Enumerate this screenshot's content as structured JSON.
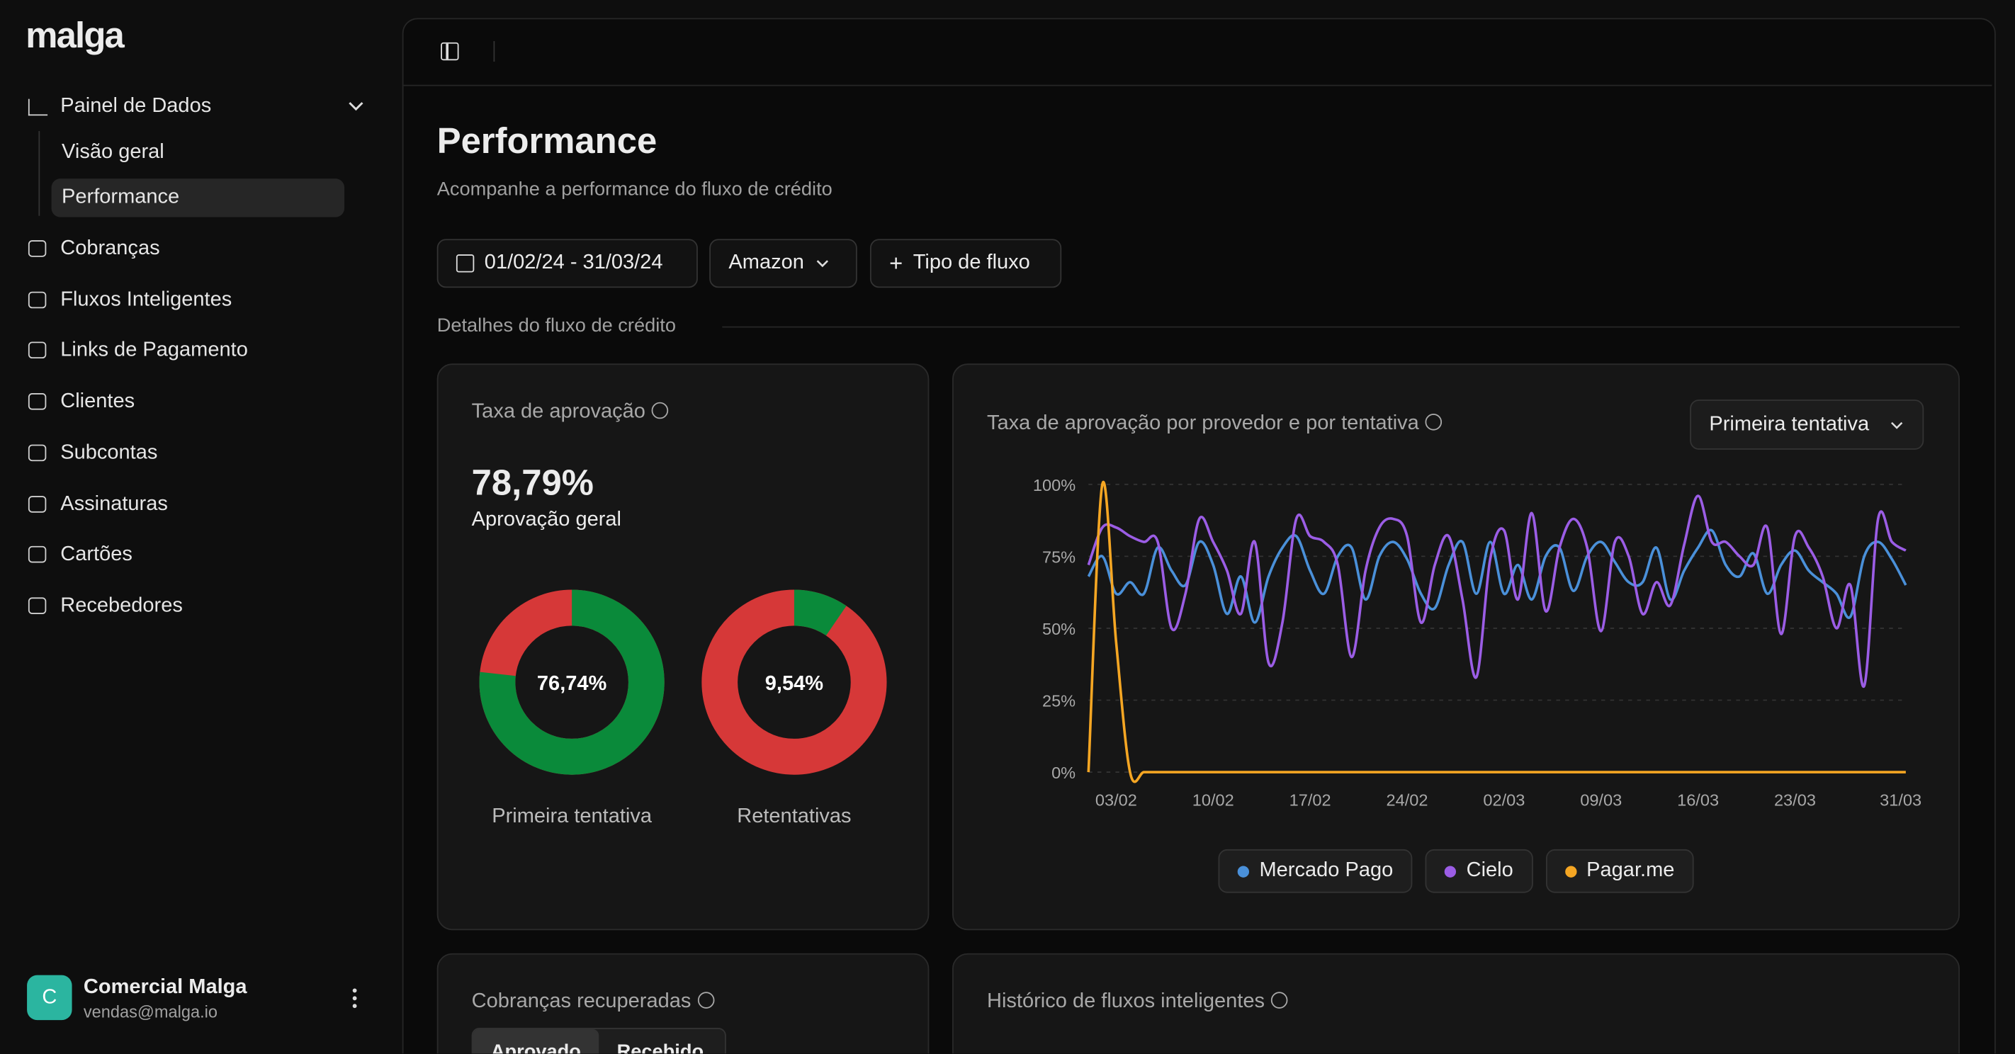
{
  "sidebar": {
    "logo": "malga",
    "section": "Painel de Dados",
    "subnav": [
      "Visão geral",
      "Performance"
    ],
    "nav": [
      "Cobranças",
      "Fluxos Inteligentes",
      "Links de Pagamento",
      "Clientes",
      "Subcontas",
      "Assinaturas",
      "Cartões",
      "Recebedores"
    ],
    "user": {
      "initial": "C",
      "name": "Comercial Malga",
      "email": "vendas@malga.io"
    }
  },
  "page": {
    "title": "Performance",
    "subtitle": "Acompanhe a performance do fluxo de crédito",
    "filters": {
      "date_range": "01/02/24 - 31/03/24",
      "merchant": "Amazon",
      "add_filter": "Tipo de fluxo"
    },
    "section_label": "Detalhes do fluxo de crédito"
  },
  "approval_card": {
    "title": "Taxa de aprovação",
    "value": "78,79%",
    "caption": "Aprovação geral",
    "donuts": [
      {
        "name": "Primeira tentativa",
        "value": 76.74,
        "value_label": "76,74%"
      },
      {
        "name": "Retentativas",
        "value": 9.54,
        "value_label": "9,54%"
      }
    ]
  },
  "chart_card": {
    "dropdown": "Primeira tentativa"
  },
  "chart_data": {
    "type": "line",
    "title": "Taxa de aprovação por provedor e por tentativa",
    "categories": [
      null,
      null,
      "03/02",
      null,
      null,
      null,
      null,
      null,
      null,
      "10/02",
      null,
      null,
      null,
      null,
      null,
      null,
      "17/02",
      null,
      null,
      null,
      null,
      null,
      null,
      "24/02",
      null,
      null,
      null,
      null,
      null,
      null,
      "02/03",
      null,
      null,
      null,
      null,
      null,
      null,
      "09/03",
      null,
      null,
      null,
      null,
      null,
      null,
      "16/03",
      null,
      null,
      null,
      null,
      null,
      null,
      "23/03",
      null,
      null,
      null,
      null,
      null,
      null,
      null,
      "31/03"
    ],
    "ylim": [
      0,
      100
    ],
    "yticks": [
      {
        "value": 0,
        "label": "0%"
      },
      {
        "value": 25,
        "label": "25%"
      },
      {
        "value": 50,
        "label": "50%"
      },
      {
        "value": 75,
        "label": "75%"
      },
      {
        "value": 100,
        "label": "100%"
      }
    ],
    "grid": true,
    "series": [
      {
        "name": "Mercado Pago",
        "color": "#4a90d9",
        "values": [
          68,
          75,
          62,
          66,
          62,
          78,
          70,
          65,
          80,
          72,
          55,
          68,
          52,
          68,
          78,
          82,
          70,
          62,
          75,
          78,
          60,
          75,
          80,
          74,
          62,
          57,
          72,
          80,
          62,
          80,
          62,
          72,
          60,
          75,
          78,
          63,
          75,
          80,
          73,
          66,
          66,
          78,
          60,
          70,
          78,
          84,
          72,
          68,
          76,
          62,
          72,
          77,
          70,
          66,
          62,
          54,
          75,
          80,
          74,
          65
        ]
      },
      {
        "name": "Cielo",
        "color": "#9b5de5",
        "values": [
          72,
          85,
          85,
          82,
          80,
          80,
          50,
          62,
          88,
          80,
          70,
          55,
          80,
          38,
          52,
          88,
          82,
          80,
          72,
          40,
          70,
          85,
          88,
          82,
          52,
          72,
          82,
          60,
          33,
          74,
          84,
          60,
          90,
          56,
          78,
          88,
          78,
          49,
          80,
          75,
          55,
          66,
          58,
          79,
          96,
          80,
          80,
          75,
          72,
          85,
          48,
          82,
          78,
          68,
          50,
          65,
          30,
          88,
          80,
          77
        ]
      },
      {
        "name": "Pagar.me",
        "color": "#f5a623",
        "values": [
          0,
          100,
          45,
          0,
          0,
          0,
          0,
          0,
          0,
          0,
          0,
          0,
          0,
          0,
          0,
          0,
          0,
          0,
          0,
          0,
          0,
          0,
          0,
          0,
          0,
          0,
          0,
          0,
          0,
          0,
          0,
          0,
          0,
          0,
          0,
          0,
          0,
          0,
          0,
          0,
          0,
          0,
          0,
          0,
          0,
          0,
          0,
          0,
          0,
          0,
          0,
          0,
          0,
          0,
          0,
          0,
          0,
          0,
          0,
          0
        ]
      }
    ]
  },
  "recovered_card": {
    "title": "Cobranças recuperadas",
    "tabs": [
      "Aprovado",
      "Recebido"
    ]
  },
  "history_card": {
    "title": "Histórico de fluxos inteligentes"
  }
}
